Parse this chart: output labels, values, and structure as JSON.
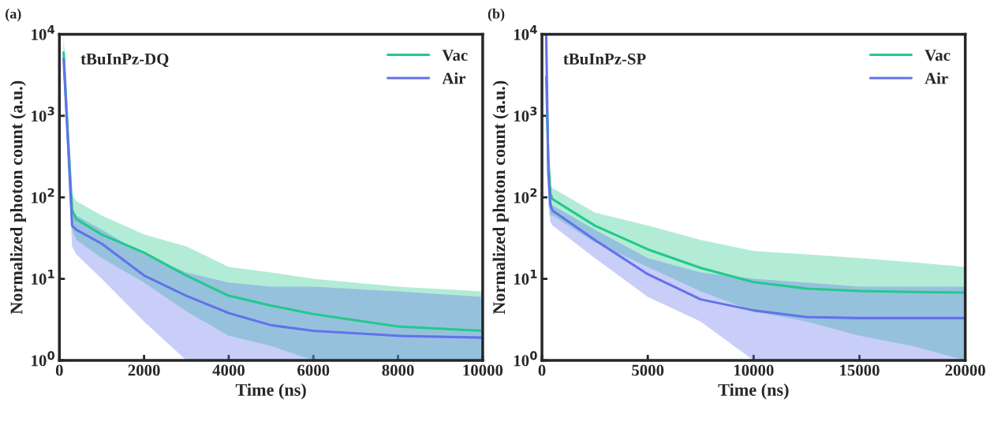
{
  "chart_data": [
    {
      "type": "line",
      "title": "(a)",
      "xlabel": "Time (ns)",
      "ylabel": "Normalized photon count (a.u.)",
      "annotations": [
        "tBuInPz-DQ"
      ],
      "log": "y",
      "xlim": [
        0,
        10000
      ],
      "xticks": [
        0,
        2000,
        4000,
        6000,
        8000,
        10000
      ],
      "ylim": [
        1,
        10000
      ],
      "yticks": [
        {
          "value": 1,
          "label": "10$^{0}$"
        },
        {
          "value": 10,
          "label": "10$^{1}$"
        },
        {
          "value": 100,
          "label": "10$^{2}$"
        },
        {
          "value": 1000,
          "label": "10$^{3}$"
        },
        {
          "value": 10000,
          "label": "10$^{4}$"
        }
      ],
      "legend": "top right",
      "grid": false,
      "x": [
        100,
        200,
        300,
        400,
        1000,
        2000,
        3000,
        4000,
        5000,
        6000,
        8000,
        10000
      ],
      "series": [
        {
          "name": "Vac",
          "color": "#23c98a",
          "values": [
            6000,
            600,
            70,
            54,
            35,
            21,
            11,
            6.2,
            4.7,
            3.7,
            2.6,
            2.3
          ],
          "lower": [
            3000,
            300,
            40,
            30,
            18,
            9,
            4,
            2,
            1.5,
            1,
            1,
            1
          ],
          "upper": [
            10000,
            1000,
            110,
            90,
            60,
            35,
            25,
            14,
            12,
            10,
            8,
            7
          ]
        },
        {
          "name": "Air",
          "color": "#6272ea",
          "values": [
            5000,
            500,
            45,
            40,
            27,
            11,
            6.2,
            3.8,
            2.7,
            2.3,
            2.0,
            1.9
          ],
          "lower": [
            3000,
            300,
            25,
            20,
            10,
            3,
            1,
            1,
            1,
            1,
            1,
            1
          ],
          "upper": [
            8000,
            800,
            70,
            60,
            40,
            20,
            12,
            9,
            8,
            8,
            7,
            6
          ]
        }
      ]
    },
    {
      "type": "line",
      "title": "(b)",
      "xlabel": "Time (ns)",
      "ylabel": "Normalized photon count (a.u.)",
      "annotations": [
        "tBuInPz-SP"
      ],
      "log": "y",
      "xlim": [
        0,
        20000
      ],
      "xticks": [
        0,
        5000,
        10000,
        15000,
        20000
      ],
      "ylim": [
        1,
        10000
      ],
      "yticks": [
        {
          "value": 1,
          "label": "10$^{0}$"
        },
        {
          "value": 10,
          "label": "10$^{1}$"
        },
        {
          "value": 100,
          "label": "10$^{2}$"
        },
        {
          "value": 1000,
          "label": "10$^{3}$"
        },
        {
          "value": 10000,
          "label": "10$^{4}$"
        }
      ],
      "legend": "top right",
      "grid": false,
      "x": [
        200,
        300,
        400,
        500,
        2500,
        5000,
        7500,
        10000,
        12500,
        15000,
        17500,
        20000
      ],
      "series": [
        {
          "name": "Vac",
          "color": "#23c98a",
          "values": [
            3000,
            300,
            110,
            95,
            45,
            23,
            13.6,
            9.1,
            7.6,
            7.1,
            6.9,
            6.8
          ],
          "lower": [
            1000,
            100,
            60,
            60,
            28,
            14,
            7,
            4,
            3,
            2,
            1.5,
            1
          ],
          "upper": [
            8000,
            800,
            140,
            130,
            65,
            45,
            30,
            22,
            20,
            18,
            16,
            14
          ]
        },
        {
          "name": "Air",
          "color": "#6272ea",
          "values": [
            10000,
            200,
            80,
            69,
            30,
            11.4,
            5.6,
            4.1,
            3.4,
            3.3,
            3.3,
            3.3
          ],
          "lower": [
            3000,
            80,
            50,
            45,
            18,
            6,
            3,
            1,
            1,
            1,
            1,
            1
          ],
          "upper": [
            10000,
            400,
            100,
            80,
            40,
            18,
            12,
            10,
            9,
            8,
            8,
            8
          ]
        }
      ]
    }
  ]
}
